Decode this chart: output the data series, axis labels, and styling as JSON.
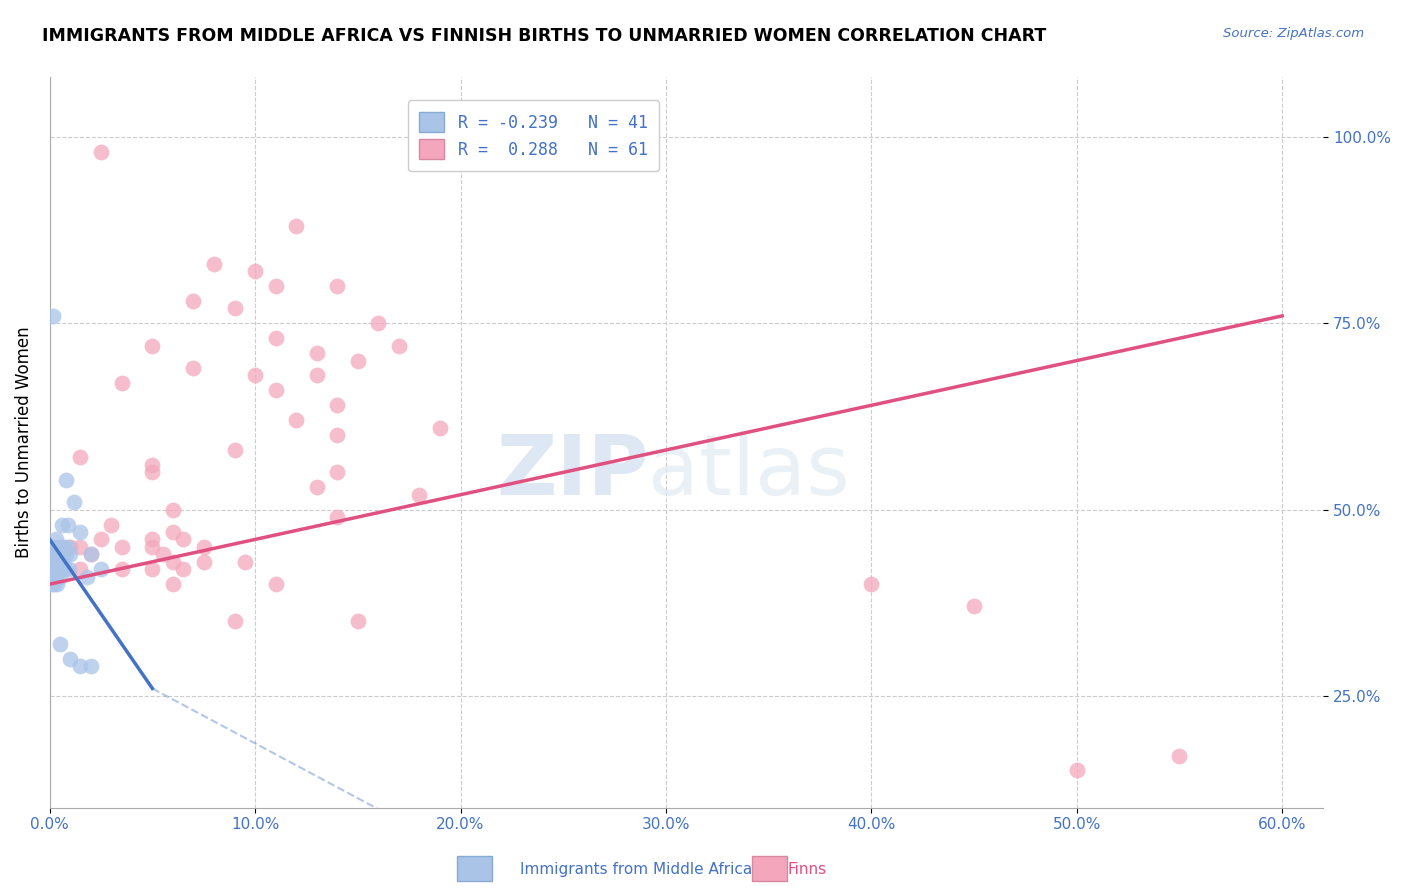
{
  "title": "IMMIGRANTS FROM MIDDLE AFRICA VS FINNISH BIRTHS TO UNMARRIED WOMEN CORRELATION CHART",
  "source": "Source: ZipAtlas.com",
  "ylabel_label": "Births to Unmarried Women",
  "legend_x_label": "Immigrants from Middle Africa",
  "legend_y_label": "Finns",
  "blue_R": "-0.239",
  "blue_N": "41",
  "pink_R": "0.288",
  "pink_N": "61",
  "blue_color": "#aac4e8",
  "pink_color": "#f4a7bc",
  "blue_line_color": "#4472c4",
  "pink_line_color": "#e05080",
  "blue_scatter": [
    [
      0.15,
      76
    ],
    [
      0.8,
      54
    ],
    [
      1.2,
      51
    ],
    [
      0.6,
      48
    ],
    [
      0.9,
      48
    ],
    [
      1.5,
      47
    ],
    [
      0.3,
      46
    ],
    [
      0.15,
      45
    ],
    [
      0.3,
      45
    ],
    [
      0.5,
      45
    ],
    [
      0.7,
      45
    ],
    [
      0.9,
      45
    ],
    [
      0.15,
      44
    ],
    [
      0.25,
      44
    ],
    [
      0.4,
      44
    ],
    [
      0.6,
      44
    ],
    [
      0.8,
      44
    ],
    [
      1.0,
      44
    ],
    [
      2.0,
      44
    ],
    [
      0.1,
      43
    ],
    [
      0.25,
      43
    ],
    [
      0.45,
      43
    ],
    [
      0.65,
      43
    ],
    [
      0.1,
      42
    ],
    [
      0.2,
      42
    ],
    [
      0.35,
      42
    ],
    [
      0.55,
      42
    ],
    [
      0.75,
      42
    ],
    [
      0.95,
      42
    ],
    [
      0.1,
      41
    ],
    [
      0.3,
      41
    ],
    [
      0.5,
      41
    ],
    [
      0.1,
      40
    ],
    [
      0.2,
      40
    ],
    [
      0.35,
      40
    ],
    [
      1.8,
      41
    ],
    [
      2.5,
      42
    ],
    [
      0.5,
      32
    ],
    [
      1.0,
      30
    ],
    [
      1.5,
      29
    ],
    [
      2.0,
      29
    ]
  ],
  "pink_scatter": [
    [
      2.5,
      98
    ],
    [
      20.0,
      98
    ],
    [
      12.0,
      88
    ],
    [
      8.0,
      83
    ],
    [
      10.0,
      82
    ],
    [
      11.0,
      80
    ],
    [
      14.0,
      80
    ],
    [
      7.0,
      78
    ],
    [
      9.0,
      77
    ],
    [
      16.0,
      75
    ],
    [
      11.0,
      73
    ],
    [
      17.0,
      72
    ],
    [
      5.0,
      72
    ],
    [
      13.0,
      71
    ],
    [
      15.0,
      70
    ],
    [
      7.0,
      69
    ],
    [
      10.0,
      68
    ],
    [
      13.0,
      68
    ],
    [
      3.5,
      67
    ],
    [
      11.0,
      66
    ],
    [
      14.0,
      64
    ],
    [
      12.0,
      62
    ],
    [
      19.0,
      61
    ],
    [
      14.0,
      60
    ],
    [
      9.0,
      58
    ],
    [
      1.5,
      57
    ],
    [
      5.0,
      56
    ],
    [
      5.0,
      55
    ],
    [
      14.0,
      55
    ],
    [
      13.0,
      53
    ],
    [
      18.0,
      52
    ],
    [
      6.0,
      50
    ],
    [
      14.0,
      49
    ],
    [
      3.0,
      48
    ],
    [
      6.0,
      47
    ],
    [
      2.5,
      46
    ],
    [
      5.0,
      46
    ],
    [
      6.5,
      46
    ],
    [
      1.0,
      45
    ],
    [
      1.5,
      45
    ],
    [
      3.5,
      45
    ],
    [
      5.0,
      45
    ],
    [
      7.5,
      45
    ],
    [
      0.6,
      44
    ],
    [
      2.0,
      44
    ],
    [
      5.5,
      44
    ],
    [
      6.0,
      43
    ],
    [
      7.5,
      43
    ],
    [
      9.5,
      43
    ],
    [
      1.5,
      42
    ],
    [
      3.5,
      42
    ],
    [
      5.0,
      42
    ],
    [
      6.5,
      42
    ],
    [
      6.0,
      40
    ],
    [
      11.0,
      40
    ],
    [
      9.0,
      35
    ],
    [
      15.0,
      35
    ],
    [
      40.0,
      40
    ],
    [
      45.0,
      37
    ],
    [
      50.0,
      15
    ],
    [
      55.0,
      17
    ]
  ],
  "xlim": [
    0,
    62
  ],
  "ylim": [
    10,
    108
  ],
  "xticks": [
    0,
    10,
    20,
    30,
    40,
    50,
    60
  ],
  "yticks": [
    25,
    50,
    75,
    100
  ],
  "blue_line": [
    [
      0,
      46
    ],
    [
      5,
      26
    ]
  ],
  "blue_dashed_line": [
    [
      5,
      26
    ],
    [
      60,
      -55
    ]
  ],
  "pink_line": [
    [
      0,
      40
    ],
    [
      60,
      76
    ]
  ]
}
